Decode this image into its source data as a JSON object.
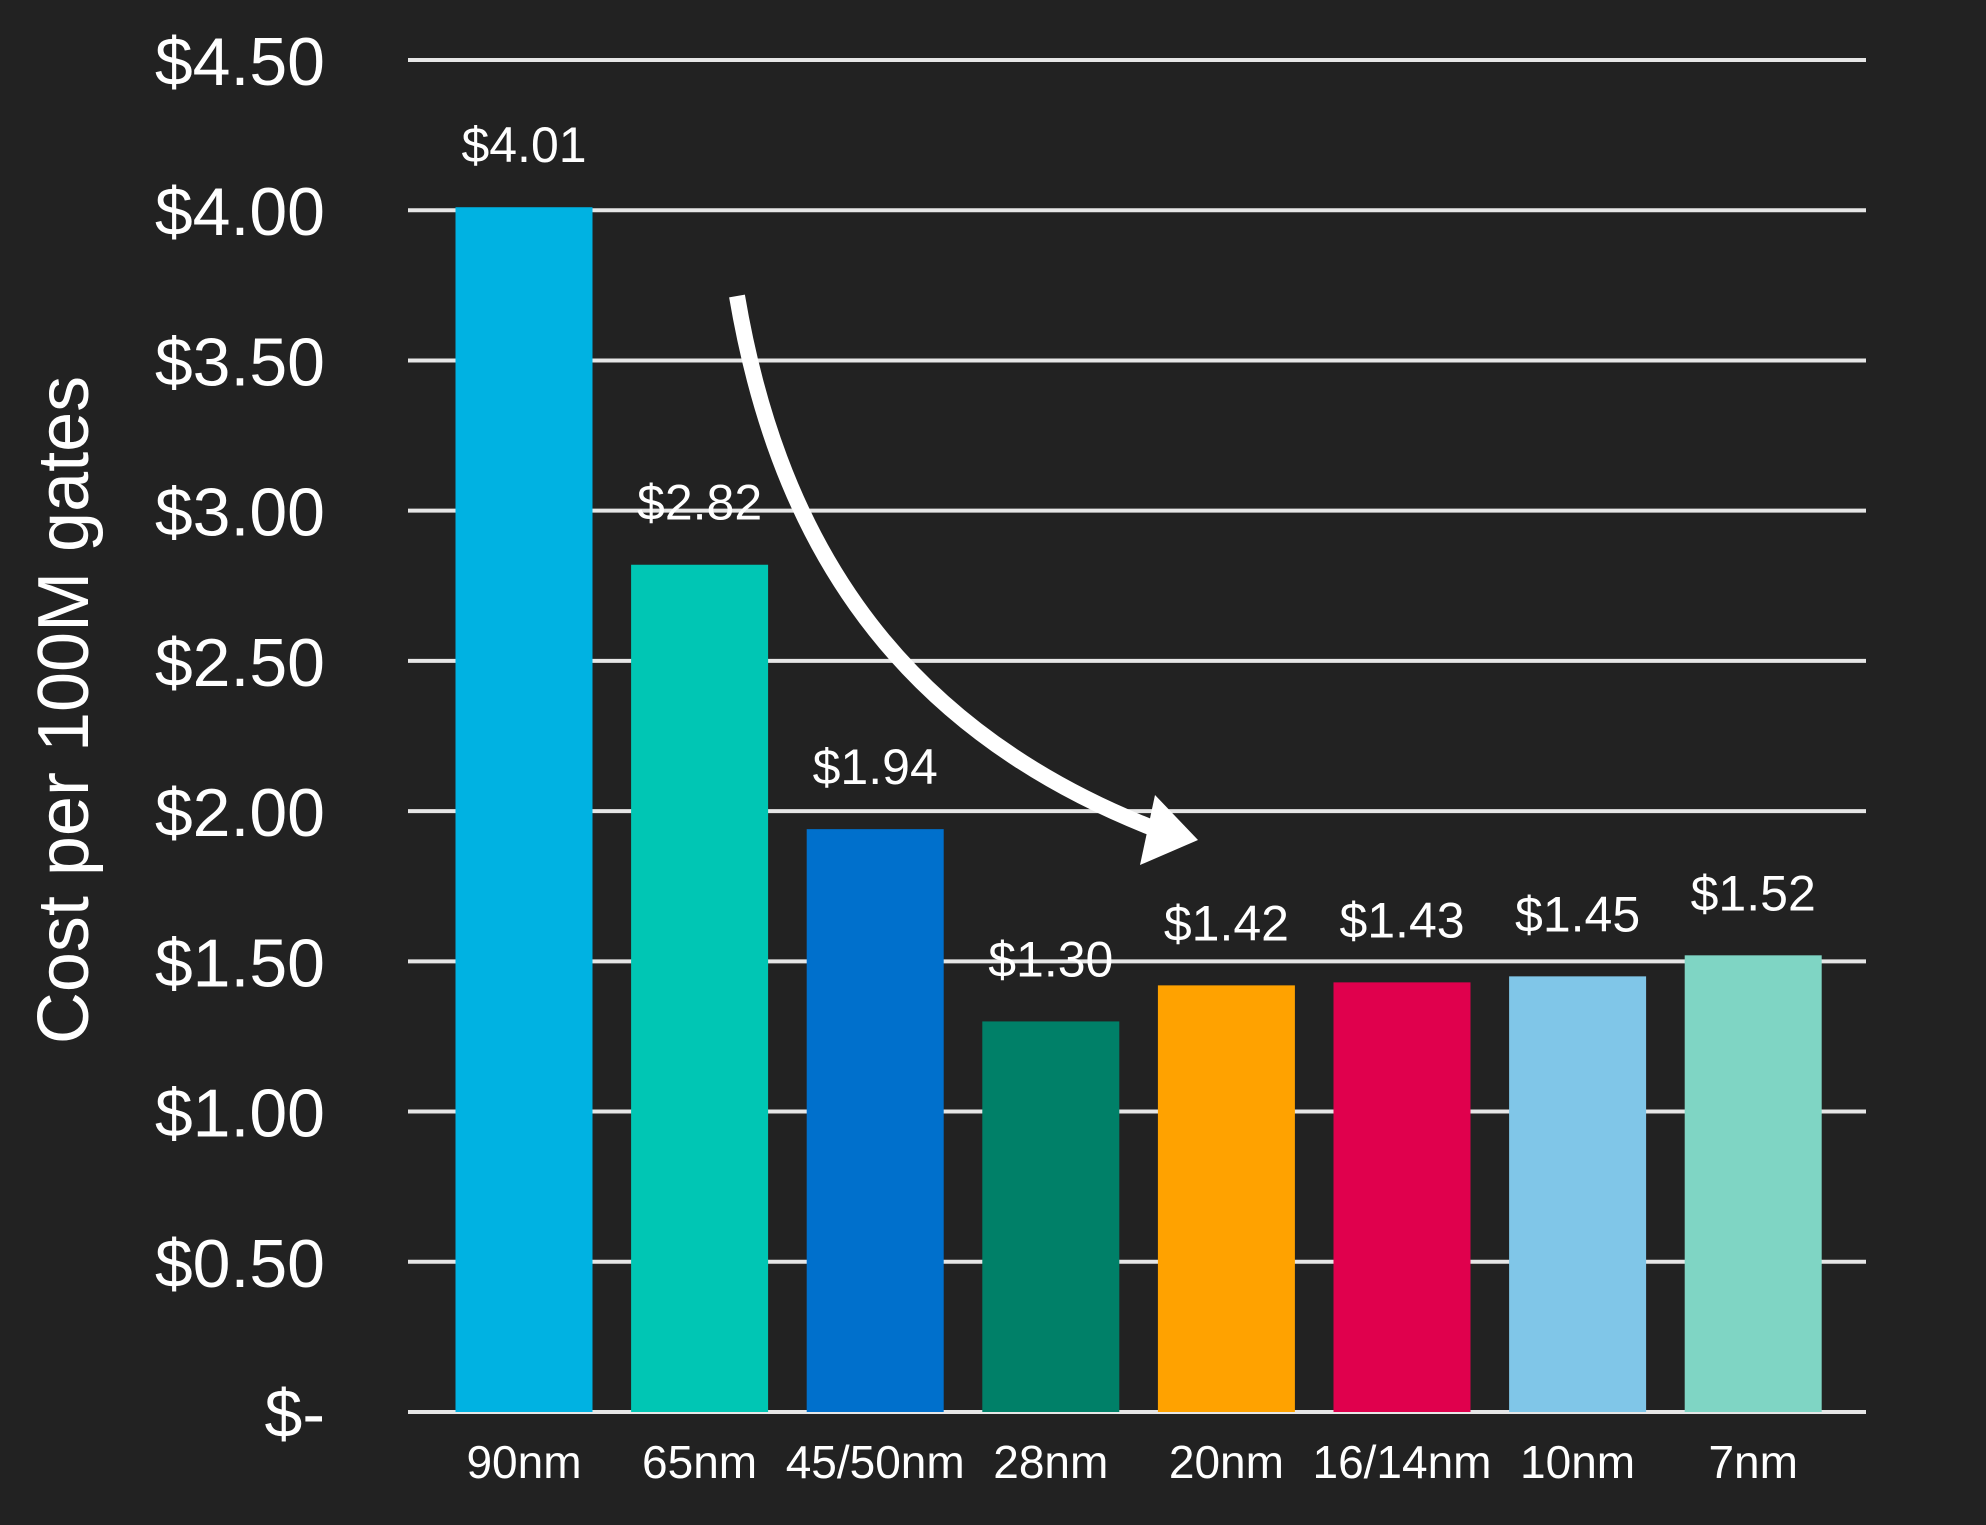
{
  "colors": {
    "background": "#222222",
    "gridline": "#e6e6e6",
    "text": "#ffffff",
    "arrow": "#ffffff"
  },
  "chart_data": {
    "type": "bar",
    "title": "",
    "xlabel": "",
    "ylabel": "Cost per 100M gates",
    "ylim": [
      0,
      4.5
    ],
    "yticks": [
      0,
      0.5,
      1.0,
      1.5,
      2.0,
      2.5,
      3.0,
      3.5,
      4.0,
      4.5
    ],
    "ytick_labels": [
      "$-",
      "$0.50",
      "$1.00",
      "$1.50",
      "$2.00",
      "$2.50",
      "$3.00",
      "$3.50",
      "$4.00",
      "$4.50"
    ],
    "grid": true,
    "legend": "none",
    "categories": [
      "90nm",
      "65nm",
      "45/50nm",
      "28nm",
      "20nm",
      "16/14nm",
      "10nm",
      "7nm"
    ],
    "values": [
      4.01,
      2.82,
      1.94,
      1.3,
      1.42,
      1.43,
      1.45,
      1.52
    ],
    "data_labels": [
      "$4.01",
      "$2.82",
      "$1.94",
      "$1.30",
      "$1.42",
      "$1.43",
      "$1.45",
      "$1.52"
    ],
    "bar_colors": [
      "#00b2e2",
      "#00c6b4",
      "#0070cc",
      "#008068",
      "#ffa200",
      "#e0004d",
      "#80c6e8",
      "#7fd5c4"
    ],
    "annotations": [
      {
        "type": "arrow",
        "description": "curved downward arrow indicating falling cost trend"
      }
    ]
  }
}
